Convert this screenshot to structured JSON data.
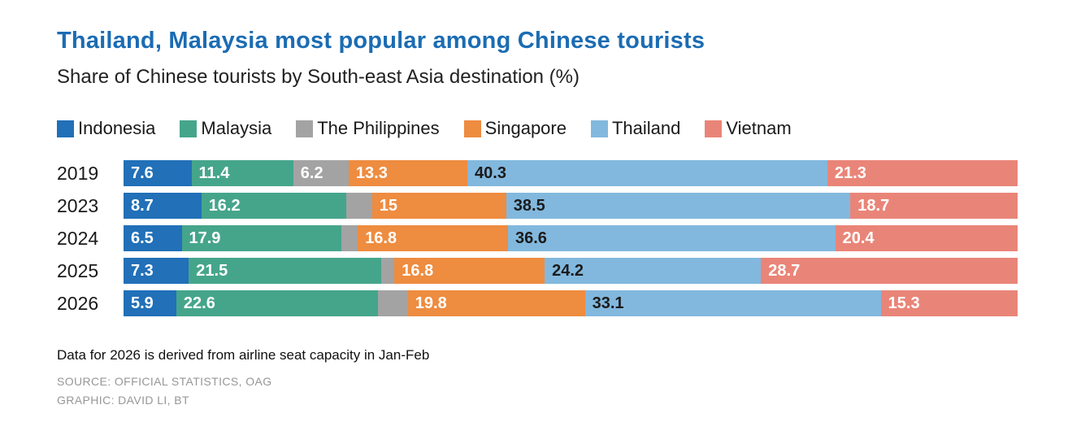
{
  "title": "Thailand, Malaysia most popular among Chinese tourists",
  "subtitle": "Share of Chinese tourists by South-east Asia destination (%)",
  "footer": {
    "note": "Data for 2026 is derived from airline seat capacity in Jan-Feb",
    "source": "SOURCE: OFFICIAL STATISTICS, OAG",
    "credit": "GRAPHIC: DAVID LI, BT"
  },
  "colors": {
    "title_accent": "#1b6cb3",
    "indonesia": "#2170b8",
    "malaysia": "#45a58b",
    "philippines": "#a3a3a3",
    "singapore": "#ee8c40",
    "thailand": "#82b8de",
    "vietnam": "#e98578"
  },
  "chart_data": {
    "type": "bar",
    "orientation": "horizontal-stacked",
    "title": "Thailand, Malaysia most popular among Chinese tourists",
    "subtitle": "Share of Chinese tourists by South-east Asia destination (%)",
    "xlabel": "",
    "ylabel": "",
    "xlim": [
      0,
      100
    ],
    "grid": false,
    "legend_position": "top",
    "categories": [
      "2019",
      "2023",
      "2024",
      "2025",
      "2026"
    ],
    "series": [
      {
        "name": "Indonesia",
        "color": "#2170b8",
        "label_color": "#ffffff",
        "values": [
          7.6,
          8.7,
          6.5,
          7.3,
          5.9
        ],
        "labels": [
          "7.6",
          "8.7",
          "6.5",
          "7.3",
          "5.9"
        ]
      },
      {
        "name": "Malaysia",
        "color": "#45a58b",
        "label_color": "#ffffff",
        "values": [
          11.4,
          16.2,
          17.9,
          21.5,
          22.6
        ],
        "labels": [
          "11.4",
          "16.2",
          "17.9",
          "21.5",
          "22.6"
        ]
      },
      {
        "name": "The Philippines",
        "color": "#a3a3a3",
        "label_color": "#ffffff",
        "values": [
          6.2,
          2.9,
          1.8,
          1.5,
          3.3
        ],
        "labels": [
          "6.2",
          "",
          "",
          "",
          ""
        ]
      },
      {
        "name": "Singapore",
        "color": "#ee8c40",
        "label_color": "#ffffff",
        "values": [
          13.3,
          15,
          16.8,
          16.8,
          19.8
        ],
        "labels": [
          "13.3",
          "15",
          "16.8",
          "16.8",
          "19.8"
        ]
      },
      {
        "name": "Thailand",
        "color": "#82b8de",
        "label_color": "#1b1b1b",
        "values": [
          40.3,
          38.5,
          36.6,
          24.2,
          33.1
        ],
        "labels": [
          "40.3",
          "38.5",
          "36.6",
          "24.2",
          "33.1"
        ]
      },
      {
        "name": "Vietnam",
        "color": "#e98578",
        "label_color": "#ffffff",
        "values": [
          21.3,
          18.7,
          20.4,
          28.7,
          15.3
        ],
        "labels": [
          "21.3",
          "18.7",
          "20.4",
          "28.7",
          "15.3"
        ]
      }
    ]
  }
}
